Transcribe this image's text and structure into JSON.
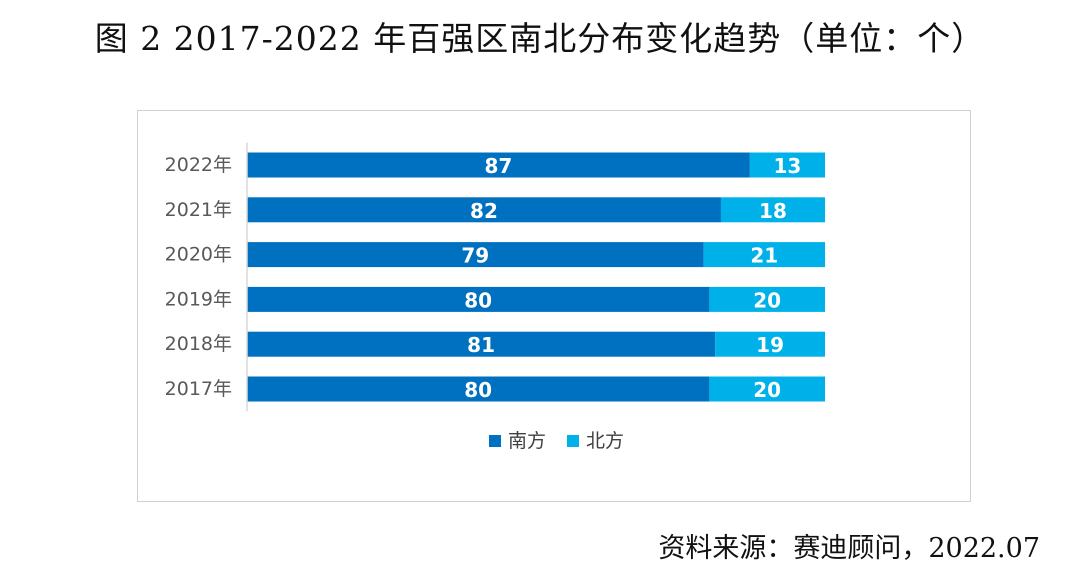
{
  "title": "图 2 2017-2022 年百强区南北分布变化趋势（单位：个）",
  "source": "资料来源：赛迪顾问，2022.07",
  "colors": {
    "south": "#0070c0",
    "north": "#00b0e8"
  },
  "chart_data": {
    "type": "bar",
    "orientation": "horizontal",
    "stacked": true,
    "categories": [
      "2022年",
      "2021年",
      "2020年",
      "2019年",
      "2018年",
      "2017年"
    ],
    "series": [
      {
        "name": "南方",
        "values": [
          87,
          82,
          79,
          80,
          81,
          80
        ],
        "color": "#0070c0"
      },
      {
        "name": "北方",
        "values": [
          13,
          18,
          21,
          20,
          19,
          20
        ],
        "color": "#00b0e8"
      }
    ],
    "xlim": [
      0,
      100
    ],
    "grid": false,
    "legend_position": "bottom",
    "data_labels": true
  }
}
